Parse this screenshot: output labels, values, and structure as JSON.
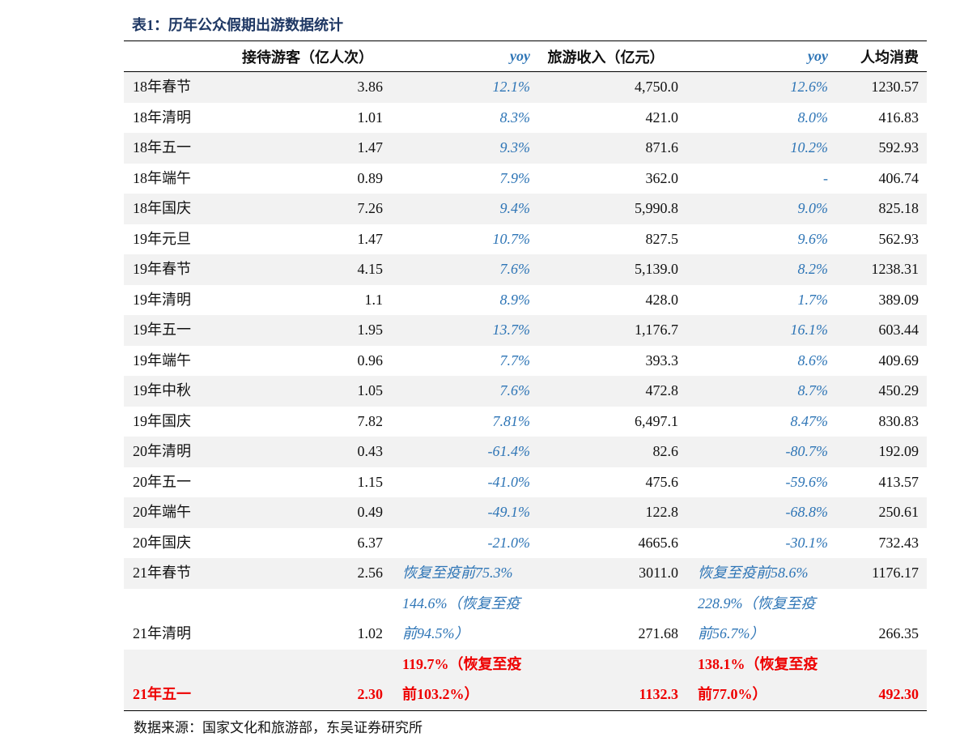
{
  "title": "表1：历年公众假期出游数据统计",
  "table": {
    "header": [
      "接待游客（亿人次）",
      "yoy",
      "旅游收入（亿元）",
      "yoy",
      "人均消费"
    ],
    "rows": [
      [
        "18年春节",
        "3.86",
        "12.1%",
        "4,750.0",
        "12.6%",
        "1230.57"
      ],
      [
        "18年清明",
        "1.01",
        "8.3%",
        "421.0",
        "8.0%",
        "416.83"
      ],
      [
        "18年五一",
        "1.47",
        "9.3%",
        "871.6",
        "10.2%",
        "592.93"
      ],
      [
        "18年端午",
        "0.89",
        "7.9%",
        "362.0",
        "-",
        "406.74"
      ],
      [
        "18年国庆",
        "7.26",
        "9.4%",
        "5,990.8",
        "9.0%",
        "825.18"
      ],
      [
        "19年元旦",
        "1.47",
        "10.7%",
        "827.5",
        "9.6%",
        "562.93"
      ],
      [
        "19年春节",
        "4.15",
        "7.6%",
        "5,139.0",
        "8.2%",
        "1238.31"
      ],
      [
        "19年清明",
        "1.1",
        "8.9%",
        "428.0",
        "1.7%",
        "389.09"
      ],
      [
        "19年五一",
        "1.95",
        "13.7%",
        "1,176.7",
        "16.1%",
        "603.44"
      ],
      [
        "19年端午",
        "0.96",
        "7.7%",
        "393.3",
        "8.6%",
        "409.69"
      ],
      [
        "19年中秋",
        "1.05",
        "7.6%",
        "472.8",
        "8.7%",
        "450.29"
      ],
      [
        "19年国庆",
        "7.82",
        "7.81%",
        "6,497.1",
        "8.47%",
        "830.83"
      ],
      [
        "20年清明",
        "0.43",
        "-61.4%",
        "82.6",
        "-80.7%",
        "192.09"
      ],
      [
        "20年五一",
        "1.15",
        "-41.0%",
        "475.6",
        "-59.6%",
        "413.57"
      ],
      [
        "20年端午",
        "0.49",
        "-49.1%",
        "122.8",
        "-68.8%",
        "250.61"
      ],
      [
        "20年国庆",
        "6.37",
        "-21.0%",
        "4665.6",
        "-30.1%",
        "732.43"
      ],
      [
        "21年春节",
        "2.56",
        "恢复至疫前75.3%",
        "3011.0",
        "恢复至疫前58.6%",
        "1176.17"
      ],
      [
        "21年清明",
        "1.02",
        "144.6%（恢复至疫前94.5%）",
        "271.68",
        "228.9%（恢复至疫前56.7%）",
        "266.35"
      ],
      [
        "21年五一",
        "2.30",
        "119.7%（恢复至疫前103.2%）",
        "1132.3",
        "138.1%（恢复至疫前77.0%）",
        "492.30"
      ]
    ]
  },
  "source": "数据来源：国家文化和旅游部，东吴证券研究所"
}
